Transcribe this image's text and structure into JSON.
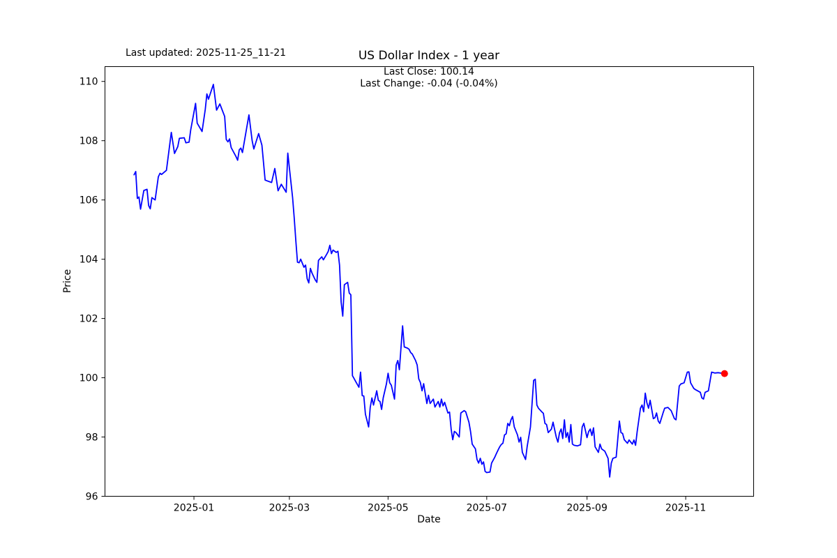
{
  "figure": {
    "last_updated": "Last updated: 2025-11-25_11-21"
  },
  "chart_data": {
    "type": "line",
    "title": "US Dollar Index - 1 year",
    "annotation_line1": "Last Close: 100.14",
    "annotation_line2": "Last Change: -0.04 (-0.04%)",
    "xlabel": "Date",
    "ylabel": "Price",
    "last_close": 100.14,
    "last_change": "-0.04 (-0.04%)",
    "line_color": "#0000ff",
    "marker_color": "#ff0000",
    "grid": false,
    "legend": "none",
    "y_ticks": [
      96,
      98,
      100,
      102,
      104,
      106,
      108,
      110
    ],
    "x_ticks": [
      "2025-01",
      "2025-03",
      "2025-05",
      "2025-07",
      "2025-09",
      "2025-11"
    ],
    "ylim": [
      96.0,
      110.5
    ],
    "xlim": [
      "2024-11-07",
      "2025-12-13"
    ],
    "points": [
      [
        "2024-11-25",
        106.85
      ],
      [
        "2024-11-26",
        106.96
      ],
      [
        "2024-11-27",
        106.05
      ],
      [
        "2024-11-28",
        106.1
      ],
      [
        "2024-11-29",
        105.69
      ],
      [
        "2024-12-01",
        106.32
      ],
      [
        "2024-12-03",
        106.36
      ],
      [
        "2024-12-04",
        105.81
      ],
      [
        "2024-12-05",
        105.7
      ],
      [
        "2024-12-06",
        106.08
      ],
      [
        "2024-12-08",
        106.0
      ],
      [
        "2024-12-10",
        106.78
      ],
      [
        "2024-12-11",
        106.9
      ],
      [
        "2024-12-12",
        106.86
      ],
      [
        "2024-12-15",
        107.0
      ],
      [
        "2024-12-18",
        108.28
      ],
      [
        "2024-12-20",
        107.57
      ],
      [
        "2024-12-22",
        107.8
      ],
      [
        "2024-12-23",
        108.08
      ],
      [
        "2024-12-26",
        108.1
      ],
      [
        "2024-12-27",
        107.93
      ],
      [
        "2024-12-29",
        107.95
      ],
      [
        "2024-12-30",
        108.36
      ],
      [
        "2025-01-02",
        109.26
      ],
      [
        "2025-01-03",
        108.59
      ],
      [
        "2025-01-06",
        108.31
      ],
      [
        "2025-01-08",
        109.06
      ],
      [
        "2025-01-09",
        109.58
      ],
      [
        "2025-01-10",
        109.4
      ],
      [
        "2025-01-13",
        109.9
      ],
      [
        "2025-01-15",
        109.03
      ],
      [
        "2025-01-17",
        109.24
      ],
      [
        "2025-01-20",
        108.82
      ],
      [
        "2025-01-21",
        108.04
      ],
      [
        "2025-01-22",
        107.96
      ],
      [
        "2025-01-23",
        108.06
      ],
      [
        "2025-01-24",
        107.77
      ],
      [
        "2025-01-27",
        107.46
      ],
      [
        "2025-01-28",
        107.34
      ],
      [
        "2025-01-29",
        107.69
      ],
      [
        "2025-01-30",
        107.75
      ],
      [
        "2025-01-31",
        107.6
      ],
      [
        "2025-02-04",
        108.87
      ],
      [
        "2025-02-06",
        108.0
      ],
      [
        "2025-02-07",
        107.72
      ],
      [
        "2025-02-10",
        108.24
      ],
      [
        "2025-02-12",
        107.85
      ],
      [
        "2025-02-14",
        106.67
      ],
      [
        "2025-02-18",
        106.59
      ],
      [
        "2025-02-20",
        107.06
      ],
      [
        "2025-02-22",
        106.31
      ],
      [
        "2025-02-24",
        106.53
      ],
      [
        "2025-02-27",
        106.26
      ],
      [
        "2025-02-28",
        107.58
      ],
      [
        "2025-03-03",
        106.08
      ],
      [
        "2025-03-04",
        105.4
      ],
      [
        "2025-03-05",
        104.6
      ],
      [
        "2025-03-06",
        103.9
      ],
      [
        "2025-03-07",
        103.88
      ],
      [
        "2025-03-08",
        104.0
      ],
      [
        "2025-03-10",
        103.73
      ],
      [
        "2025-03-11",
        103.8
      ],
      [
        "2025-03-12",
        103.34
      ],
      [
        "2025-03-13",
        103.2
      ],
      [
        "2025-03-14",
        103.69
      ],
      [
        "2025-03-15",
        103.53
      ],
      [
        "2025-03-17",
        103.3
      ],
      [
        "2025-03-18",
        103.22
      ],
      [
        "2025-03-19",
        103.96
      ],
      [
        "2025-03-21",
        104.08
      ],
      [
        "2025-03-22",
        103.98
      ],
      [
        "2025-03-24",
        104.16
      ],
      [
        "2025-03-25",
        104.26
      ],
      [
        "2025-03-26",
        104.47
      ],
      [
        "2025-03-27",
        104.19
      ],
      [
        "2025-03-28",
        104.31
      ],
      [
        "2025-03-30",
        104.23
      ],
      [
        "2025-03-31",
        104.27
      ],
      [
        "2025-04-01",
        103.8
      ],
      [
        "2025-04-02",
        102.55
      ],
      [
        "2025-04-03",
        102.08
      ],
      [
        "2025-04-04",
        103.14
      ],
      [
        "2025-04-06",
        103.22
      ],
      [
        "2025-04-07",
        102.86
      ],
      [
        "2025-04-08",
        102.8
      ],
      [
        "2025-04-09",
        100.07
      ],
      [
        "2025-04-10",
        99.97
      ],
      [
        "2025-04-11",
        99.87
      ],
      [
        "2025-04-13",
        99.68
      ],
      [
        "2025-04-14",
        100.19
      ],
      [
        "2025-04-15",
        99.4
      ],
      [
        "2025-04-16",
        99.38
      ],
      [
        "2025-04-17",
        98.77
      ],
      [
        "2025-04-19",
        98.34
      ],
      [
        "2025-04-20",
        99.0
      ],
      [
        "2025-04-21",
        99.32
      ],
      [
        "2025-04-22",
        99.08
      ],
      [
        "2025-04-24",
        99.56
      ],
      [
        "2025-04-25",
        99.24
      ],
      [
        "2025-04-26",
        99.2
      ],
      [
        "2025-04-27",
        98.93
      ],
      [
        "2025-04-28",
        99.32
      ],
      [
        "2025-04-30",
        99.79
      ],
      [
        "2025-05-01",
        100.15
      ],
      [
        "2025-05-02",
        99.83
      ],
      [
        "2025-05-03",
        99.75
      ],
      [
        "2025-05-05",
        99.28
      ],
      [
        "2025-05-06",
        100.43
      ],
      [
        "2025-05-07",
        100.58
      ],
      [
        "2025-05-08",
        100.27
      ],
      [
        "2025-05-10",
        101.75
      ],
      [
        "2025-05-11",
        101.04
      ],
      [
        "2025-05-13",
        101.0
      ],
      [
        "2025-05-14",
        100.96
      ],
      [
        "2025-05-15",
        100.85
      ],
      [
        "2025-05-16",
        100.8
      ],
      [
        "2025-05-18",
        100.58
      ],
      [
        "2025-05-19",
        100.43
      ],
      [
        "2025-05-20",
        99.96
      ],
      [
        "2025-05-21",
        99.84
      ],
      [
        "2025-05-22",
        99.56
      ],
      [
        "2025-05-23",
        99.8
      ],
      [
        "2025-05-25",
        99.13
      ],
      [
        "2025-05-26",
        99.41
      ],
      [
        "2025-05-27",
        99.13
      ],
      [
        "2025-05-29",
        99.28
      ],
      [
        "2025-05-30",
        99.01
      ],
      [
        "2025-06-01",
        99.2
      ],
      [
        "2025-06-02",
        99.01
      ],
      [
        "2025-06-03",
        99.28
      ],
      [
        "2025-06-04",
        99.05
      ],
      [
        "2025-06-05",
        99.17
      ],
      [
        "2025-06-07",
        98.81
      ],
      [
        "2025-06-08",
        98.84
      ],
      [
        "2025-06-09",
        98.27
      ],
      [
        "2025-06-10",
        97.91
      ],
      [
        "2025-06-11",
        98.19
      ],
      [
        "2025-06-12",
        98.15
      ],
      [
        "2025-06-14",
        98.0
      ],
      [
        "2025-06-15",
        98.81
      ],
      [
        "2025-06-17",
        98.89
      ],
      [
        "2025-06-18",
        98.85
      ],
      [
        "2025-06-20",
        98.5
      ],
      [
        "2025-06-21",
        98.19
      ],
      [
        "2025-06-22",
        97.76
      ],
      [
        "2025-06-24",
        97.6
      ],
      [
        "2025-06-25",
        97.24
      ],
      [
        "2025-06-26",
        97.12
      ],
      [
        "2025-06-27",
        97.28
      ],
      [
        "2025-06-28",
        97.08
      ],
      [
        "2025-06-29",
        97.16
      ],
      [
        "2025-06-30",
        96.84
      ],
      [
        "2025-07-01",
        96.8
      ],
      [
        "2025-07-03",
        96.82
      ],
      [
        "2025-07-04",
        97.12
      ],
      [
        "2025-07-05",
        97.22
      ],
      [
        "2025-07-06",
        97.32
      ],
      [
        "2025-07-07",
        97.44
      ],
      [
        "2025-07-08",
        97.56
      ],
      [
        "2025-07-09",
        97.67
      ],
      [
        "2025-07-10",
        97.75
      ],
      [
        "2025-07-11",
        97.79
      ],
      [
        "2025-07-12",
        98.07
      ],
      [
        "2025-07-13",
        98.11
      ],
      [
        "2025-07-14",
        98.46
      ],
      [
        "2025-07-15",
        98.38
      ],
      [
        "2025-07-16",
        98.58
      ],
      [
        "2025-07-17",
        98.69
      ],
      [
        "2025-07-18",
        98.34
      ],
      [
        "2025-07-20",
        98.07
      ],
      [
        "2025-07-21",
        97.83
      ],
      [
        "2025-07-22",
        97.99
      ],
      [
        "2025-07-23",
        97.48
      ],
      [
        "2025-07-25",
        97.24
      ],
      [
        "2025-07-26",
        97.68
      ],
      [
        "2025-07-28",
        98.34
      ],
      [
        "2025-07-30",
        99.91
      ],
      [
        "2025-07-31",
        99.95
      ],
      [
        "2025-08-01",
        99.08
      ],
      [
        "2025-08-02",
        98.97
      ],
      [
        "2025-08-04",
        98.85
      ],
      [
        "2025-08-05",
        98.8
      ],
      [
        "2025-08-06",
        98.46
      ],
      [
        "2025-08-07",
        98.42
      ],
      [
        "2025-08-08",
        98.15
      ],
      [
        "2025-08-10",
        98.27
      ],
      [
        "2025-08-11",
        98.5
      ],
      [
        "2025-08-13",
        97.99
      ],
      [
        "2025-08-14",
        97.83
      ],
      [
        "2025-08-15",
        98.15
      ],
      [
        "2025-08-16",
        98.27
      ],
      [
        "2025-08-17",
        97.95
      ],
      [
        "2025-08-18",
        98.58
      ],
      [
        "2025-08-19",
        97.99
      ],
      [
        "2025-08-20",
        98.15
      ],
      [
        "2025-08-21",
        97.83
      ],
      [
        "2025-08-22",
        98.42
      ],
      [
        "2025-08-23",
        97.76
      ],
      [
        "2025-08-24",
        97.72
      ],
      [
        "2025-08-26",
        97.7
      ],
      [
        "2025-08-28",
        97.74
      ],
      [
        "2025-08-29",
        98.34
      ],
      [
        "2025-08-30",
        98.46
      ],
      [
        "2025-09-01",
        97.98
      ],
      [
        "2025-09-02",
        98.18
      ],
      [
        "2025-09-03",
        98.27
      ],
      [
        "2025-09-04",
        98.05
      ],
      [
        "2025-09-05",
        98.31
      ],
      [
        "2025-09-06",
        97.67
      ],
      [
        "2025-09-08",
        97.48
      ],
      [
        "2025-09-09",
        97.76
      ],
      [
        "2025-09-10",
        97.6
      ],
      [
        "2025-09-11",
        97.56
      ],
      [
        "2025-09-12",
        97.52
      ],
      [
        "2025-09-14",
        97.28
      ],
      [
        "2025-09-15",
        96.65
      ],
      [
        "2025-09-16",
        97.12
      ],
      [
        "2025-09-17",
        97.28
      ],
      [
        "2025-09-18",
        97.3
      ],
      [
        "2025-09-19",
        97.32
      ],
      [
        "2025-09-21",
        98.54
      ],
      [
        "2025-09-22",
        98.15
      ],
      [
        "2025-09-23",
        98.12
      ],
      [
        "2025-09-24",
        97.91
      ],
      [
        "2025-09-26",
        97.79
      ],
      [
        "2025-09-27",
        97.9
      ],
      [
        "2025-09-29",
        97.76
      ],
      [
        "2025-09-30",
        97.9
      ],
      [
        "2025-10-01",
        97.72
      ],
      [
        "2025-10-02",
        98.18
      ],
      [
        "2025-10-04",
        98.97
      ],
      [
        "2025-10-05",
        99.08
      ],
      [
        "2025-10-06",
        98.85
      ],
      [
        "2025-10-07",
        99.48
      ],
      [
        "2025-10-08",
        99.16
      ],
      [
        "2025-10-09",
        98.97
      ],
      [
        "2025-10-10",
        99.24
      ],
      [
        "2025-10-12",
        98.62
      ],
      [
        "2025-10-13",
        98.65
      ],
      [
        "2025-10-14",
        98.81
      ],
      [
        "2025-10-15",
        98.54
      ],
      [
        "2025-10-16",
        98.46
      ],
      [
        "2025-10-18",
        98.81
      ],
      [
        "2025-10-19",
        98.97
      ],
      [
        "2025-10-21",
        99.0
      ],
      [
        "2025-10-23",
        98.89
      ],
      [
        "2025-10-25",
        98.62
      ],
      [
        "2025-10-26",
        98.58
      ],
      [
        "2025-10-28",
        99.72
      ],
      [
        "2025-10-29",
        99.79
      ],
      [
        "2025-10-31",
        99.83
      ],
      [
        "2025-11-02",
        100.19
      ],
      [
        "2025-11-03",
        100.2
      ],
      [
        "2025-11-04",
        99.83
      ],
      [
        "2025-11-06",
        99.64
      ],
      [
        "2025-11-07",
        99.6
      ],
      [
        "2025-11-10",
        99.51
      ],
      [
        "2025-11-11",
        99.32
      ],
      [
        "2025-11-12",
        99.28
      ],
      [
        "2025-11-13",
        99.51
      ],
      [
        "2025-11-15",
        99.56
      ],
      [
        "2025-11-17",
        100.19
      ],
      [
        "2025-11-19",
        100.16
      ],
      [
        "2025-11-21",
        100.17
      ],
      [
        "2025-11-25",
        100.14
      ]
    ],
    "last_point": [
      "2025-11-25",
      100.14
    ]
  }
}
